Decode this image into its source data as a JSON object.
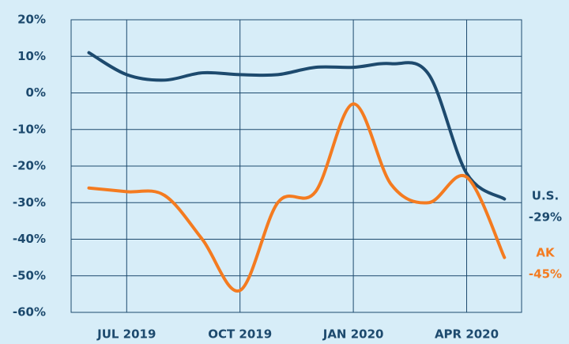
{
  "chart_data": {
    "type": "line",
    "categories": [
      null,
      "JUL 2019",
      null,
      null,
      "OCT 2019",
      null,
      null,
      "JAN 2020",
      null,
      null,
      "APR 2020",
      null
    ],
    "series": [
      {
        "name": "U.S.",
        "color": "#1d4a6e",
        "values": [
          11,
          5,
          3.5,
          5.5,
          5,
          5,
          7,
          7,
          8,
          5,
          -22,
          -29
        ],
        "value_labels": [
          null,
          null,
          null,
          null,
          null,
          null,
          null,
          null,
          null,
          null,
          null,
          "-29%"
        ]
      },
      {
        "name": "AK",
        "color": "#f47b20",
        "values": [
          -26,
          -27,
          -28,
          -40,
          -54,
          -30,
          -27,
          -3,
          -25,
          -30,
          -23,
          -45
        ],
        "value_labels": [
          null,
          null,
          null,
          null,
          null,
          null,
          null,
          null,
          null,
          null,
          null,
          "-45%"
        ]
      }
    ],
    "ylim": [
      -60,
      20
    ],
    "yticks": [
      {
        "value": 20,
        "label": "20%"
      },
      {
        "value": 10,
        "label": "10%"
      },
      {
        "value": 0,
        "label": "0%"
      },
      {
        "value": -10,
        "label": "-10%"
      },
      {
        "value": -20,
        "label": "-20%"
      },
      {
        "value": -30,
        "label": "-30%"
      },
      {
        "value": -40,
        "label": "-40%"
      },
      {
        "value": -50,
        "label": "-50%"
      },
      {
        "value": -60,
        "label": "-60%"
      }
    ],
    "grid": true
  }
}
